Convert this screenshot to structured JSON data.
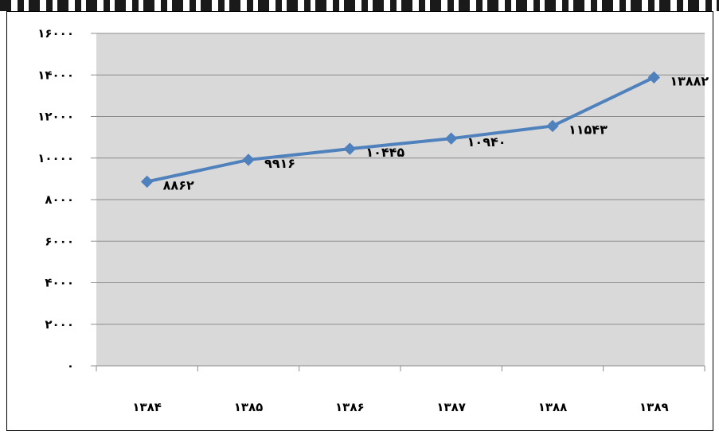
{
  "chart_data": {
    "type": "line",
    "title": "",
    "xlabel": "",
    "ylabel": "",
    "categories": [
      "۱۳۸۴",
      "۱۳۸۵",
      "۱۳۸۶",
      "۱۳۸۷",
      "۱۳۸۸",
      "۱۳۸۹"
    ],
    "series": [
      {
        "name": "",
        "values": [
          8862,
          9916,
          10445,
          10940,
          11543,
          13882
        ],
        "labels": [
          "۸۸۶۲",
          "۹۹۱۶",
          "۱۰۴۴۵",
          "۱۰۹۴۰",
          "۱۱۵۴۳",
          "۱۳۸۸۲"
        ]
      }
    ],
    "ylim": [
      0,
      16000
    ],
    "yticks": [
      0,
      2000,
      4000,
      6000,
      8000,
      10000,
      12000,
      14000,
      16000
    ],
    "ytick_labels": [
      "۰",
      "۲۰۰۰",
      "۴۰۰۰",
      "۶۰۰۰",
      "۸۰۰۰",
      "۱۰۰۰۰",
      "۱۲۰۰۰",
      "۱۴۰۰۰",
      "۱۶۰۰۰"
    ],
    "grid": true,
    "legend": "none",
    "colors": {
      "line": "#4f81bd",
      "plot_background": "#d9d9d9",
      "gridline": "#8c8c8c"
    },
    "marker": "diamond"
  }
}
